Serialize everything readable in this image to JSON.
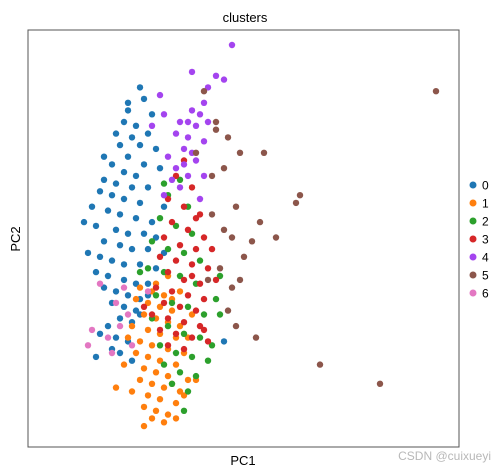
{
  "chart_data": {
    "type": "scatter",
    "title": "clusters",
    "xlabel": "PC1",
    "ylabel": "PC2",
    "xlim": [
      0,
      100
    ],
    "ylim": [
      0,
      100
    ],
    "grid": false,
    "legend_position": "right",
    "series": [
      {
        "name": "0",
        "color": "#1f77b4",
        "points": [
          [
            24,
            89
          ],
          [
            25,
            86
          ],
          [
            21,
            83
          ],
          [
            27,
            82
          ],
          [
            20,
            80
          ],
          [
            23,
            79
          ],
          [
            26,
            77
          ],
          [
            22,
            76
          ],
          [
            19,
            74
          ],
          [
            24,
            74
          ],
          [
            28,
            73
          ],
          [
            21,
            71
          ],
          [
            17,
            69
          ],
          [
            25,
            69
          ],
          [
            20,
            67
          ],
          [
            23,
            66
          ],
          [
            15,
            65
          ],
          [
            18,
            64
          ],
          [
            22,
            63
          ],
          [
            26,
            63
          ],
          [
            14,
            62
          ],
          [
            17,
            61
          ],
          [
            20,
            60
          ],
          [
            24,
            59
          ],
          [
            12,
            58
          ],
          [
            16,
            57
          ],
          [
            19,
            56
          ],
          [
            23,
            55
          ],
          [
            27,
            54
          ],
          [
            10,
            54
          ],
          [
            13,
            53
          ],
          [
            18,
            52
          ],
          [
            21,
            51
          ],
          [
            25,
            51
          ],
          [
            15,
            49
          ],
          [
            19,
            48
          ],
          [
            22,
            47
          ],
          [
            26,
            47
          ],
          [
            11,
            46
          ],
          [
            14,
            45
          ],
          [
            17,
            44
          ],
          [
            20,
            43
          ],
          [
            24,
            43
          ],
          [
            28,
            42
          ],
          [
            13,
            41
          ],
          [
            16,
            40
          ],
          [
            20,
            39
          ],
          [
            23,
            38
          ],
          [
            26,
            38
          ],
          [
            15,
            37
          ],
          [
            18,
            36
          ],
          [
            21,
            35
          ],
          [
            24,
            34
          ],
          [
            17,
            33
          ],
          [
            20,
            32
          ],
          [
            23,
            31
          ],
          [
            19,
            29
          ],
          [
            22,
            28
          ],
          [
            16,
            27
          ],
          [
            14,
            25
          ],
          [
            18,
            24
          ],
          [
            21,
            23
          ],
          [
            17,
            21
          ],
          [
            19,
            20
          ],
          [
            13,
            19
          ],
          [
            30,
            58
          ],
          [
            28,
            50
          ],
          [
            30,
            46
          ],
          [
            26,
            35
          ],
          [
            24,
            30
          ],
          [
            45,
            23
          ],
          [
            22,
            18
          ],
          [
            15,
            71
          ],
          [
            18,
            77
          ],
          [
            21,
            85
          ],
          [
            29,
            68
          ]
        ]
      },
      {
        "name": "1",
        "color": "#ff7f0e",
        "points": [
          [
            24,
            37
          ],
          [
            27,
            36
          ],
          [
            30,
            35
          ],
          [
            26,
            33
          ],
          [
            29,
            32
          ],
          [
            32,
            31
          ],
          [
            25,
            30
          ],
          [
            28,
            29
          ],
          [
            31,
            28
          ],
          [
            34,
            27
          ],
          [
            22,
            27
          ],
          [
            26,
            26
          ],
          [
            29,
            25
          ],
          [
            33,
            24
          ],
          [
            21,
            24
          ],
          [
            24,
            23
          ],
          [
            27,
            22
          ],
          [
            31,
            21
          ],
          [
            35,
            20
          ],
          [
            23,
            20
          ],
          [
            26,
            19
          ],
          [
            29,
            18
          ],
          [
            33,
            17
          ],
          [
            20,
            17
          ],
          [
            25,
            16
          ],
          [
            28,
            15
          ],
          [
            31,
            14
          ],
          [
            36,
            13
          ],
          [
            24,
            13
          ],
          [
            27,
            12
          ],
          [
            30,
            11
          ],
          [
            34,
            10
          ],
          [
            22,
            10
          ],
          [
            26,
            9
          ],
          [
            29,
            8
          ],
          [
            33,
            7
          ],
          [
            25,
            6
          ],
          [
            28,
            5
          ],
          [
            31,
            4
          ],
          [
            27,
            3
          ],
          [
            30,
            2
          ],
          [
            35,
            9
          ],
          [
            38,
            13
          ],
          [
            33,
            3
          ],
          [
            18,
            11
          ],
          [
            25,
            1
          ],
          [
            32,
            12
          ],
          [
            36,
            24
          ],
          [
            32,
            34
          ],
          [
            28,
            38
          ],
          [
            31,
            40
          ],
          [
            34,
            36
          ],
          [
            23,
            34
          ],
          [
            37,
            30
          ]
        ]
      },
      {
        "name": "2",
        "color": "#2ca02c",
        "points": [
          [
            34,
            65
          ],
          [
            31,
            61
          ],
          [
            36,
            58
          ],
          [
            29,
            55
          ],
          [
            33,
            53
          ],
          [
            37,
            51
          ],
          [
            27,
            49
          ],
          [
            31,
            47
          ],
          [
            35,
            46
          ],
          [
            39,
            44
          ],
          [
            26,
            42
          ],
          [
            30,
            41
          ],
          [
            34,
            40
          ],
          [
            38,
            38
          ],
          [
            28,
            35
          ],
          [
            32,
            33
          ],
          [
            36,
            32
          ],
          [
            40,
            30
          ],
          [
            27,
            29
          ],
          [
            31,
            27
          ],
          [
            35,
            25
          ],
          [
            39,
            24
          ],
          [
            29,
            22
          ],
          [
            33,
            20
          ],
          [
            37,
            19
          ],
          [
            41,
            18
          ],
          [
            30,
            17
          ],
          [
            34,
            15
          ],
          [
            38,
            14
          ],
          [
            32,
            12
          ],
          [
            36,
            10
          ],
          [
            42,
            22
          ],
          [
            44,
            30
          ],
          [
            43,
            34
          ],
          [
            44,
            40
          ],
          [
            30,
            64
          ],
          [
            24,
            41
          ],
          [
            35,
            5
          ]
        ]
      },
      {
        "name": "3",
        "color": "#d62728",
        "points": [
          [
            35,
            70
          ],
          [
            33,
            66
          ],
          [
            37,
            63
          ],
          [
            31,
            60
          ],
          [
            35,
            58
          ],
          [
            39,
            56
          ],
          [
            32,
            54
          ],
          [
            36,
            52
          ],
          [
            40,
            50
          ],
          [
            30,
            50
          ],
          [
            34,
            48
          ],
          [
            38,
            47
          ],
          [
            29,
            45
          ],
          [
            33,
            44
          ],
          [
            37,
            43
          ],
          [
            41,
            42
          ],
          [
            31,
            41
          ],
          [
            35,
            39
          ],
          [
            39,
            38
          ],
          [
            28,
            37
          ],
          [
            32,
            36
          ],
          [
            36,
            35
          ],
          [
            40,
            34
          ],
          [
            30,
            33
          ],
          [
            34,
            32
          ],
          [
            38,
            31
          ],
          [
            27,
            30
          ],
          [
            31,
            29
          ],
          [
            35,
            28
          ],
          [
            39,
            27
          ],
          [
            29,
            26
          ],
          [
            33,
            25
          ],
          [
            37,
            24
          ],
          [
            41,
            23
          ],
          [
            31,
            22
          ],
          [
            35,
            21
          ],
          [
            38,
            55
          ],
          [
            42,
            47
          ],
          [
            43,
            39
          ],
          [
            25,
            32
          ],
          [
            40,
            26
          ],
          [
            37,
            40
          ]
        ]
      },
      {
        "name": "4",
        "color": "#a444ef",
        "points": [
          [
            47,
            100
          ],
          [
            37,
            93
          ],
          [
            43,
            92
          ],
          [
            45,
            91
          ],
          [
            41,
            89
          ],
          [
            29,
            87
          ],
          [
            40,
            85
          ],
          [
            37,
            83
          ],
          [
            39,
            82
          ],
          [
            34,
            80
          ],
          [
            38,
            79
          ],
          [
            33,
            77
          ],
          [
            36,
            76
          ],
          [
            40,
            75
          ],
          [
            35,
            73
          ],
          [
            37,
            72
          ],
          [
            31,
            71
          ],
          [
            38,
            70
          ],
          [
            35,
            69
          ],
          [
            33,
            68
          ],
          [
            36,
            66
          ],
          [
            32,
            65
          ],
          [
            40,
            66
          ],
          [
            34,
            63
          ],
          [
            30,
            61
          ],
          [
            39,
            60
          ],
          [
            27,
            79
          ],
          [
            30,
            82
          ],
          [
            36,
            80
          ],
          [
            41,
            80
          ]
        ]
      },
      {
        "name": "5",
        "color": "#8c564b",
        "points": [
          [
            98,
            88
          ],
          [
            40,
            88
          ],
          [
            43,
            78
          ],
          [
            49,
            72
          ],
          [
            55,
            72
          ],
          [
            45,
            68
          ],
          [
            42,
            66
          ],
          [
            64,
            61
          ],
          [
            63,
            59
          ],
          [
            54,
            54
          ],
          [
            52,
            49
          ],
          [
            58,
            50
          ],
          [
            45,
            52
          ],
          [
            50,
            45
          ],
          [
            47,
            37
          ],
          [
            49,
            39
          ],
          [
            48,
            27
          ],
          [
            46,
            31
          ],
          [
            53,
            24
          ],
          [
            44,
            42
          ],
          [
            41,
            39
          ],
          [
            69,
            17
          ],
          [
            84,
            12
          ],
          [
            43,
            80
          ],
          [
            38,
            72
          ],
          [
            46,
            76
          ],
          [
            42,
            56
          ],
          [
            47,
            50
          ],
          [
            48,
            58
          ]
        ]
      },
      {
        "name": "6",
        "color": "#e377c2",
        "points": [
          [
            14,
            38
          ],
          [
            18,
            33
          ],
          [
            21,
            30
          ],
          [
            19,
            27
          ],
          [
            12,
            26
          ],
          [
            16,
            24
          ],
          [
            22,
            22
          ],
          [
            17,
            20
          ],
          [
            26,
            36
          ],
          [
            11,
            22
          ],
          [
            20,
            37
          ]
        ]
      }
    ]
  },
  "watermark": "CSDN @cuixueyi"
}
